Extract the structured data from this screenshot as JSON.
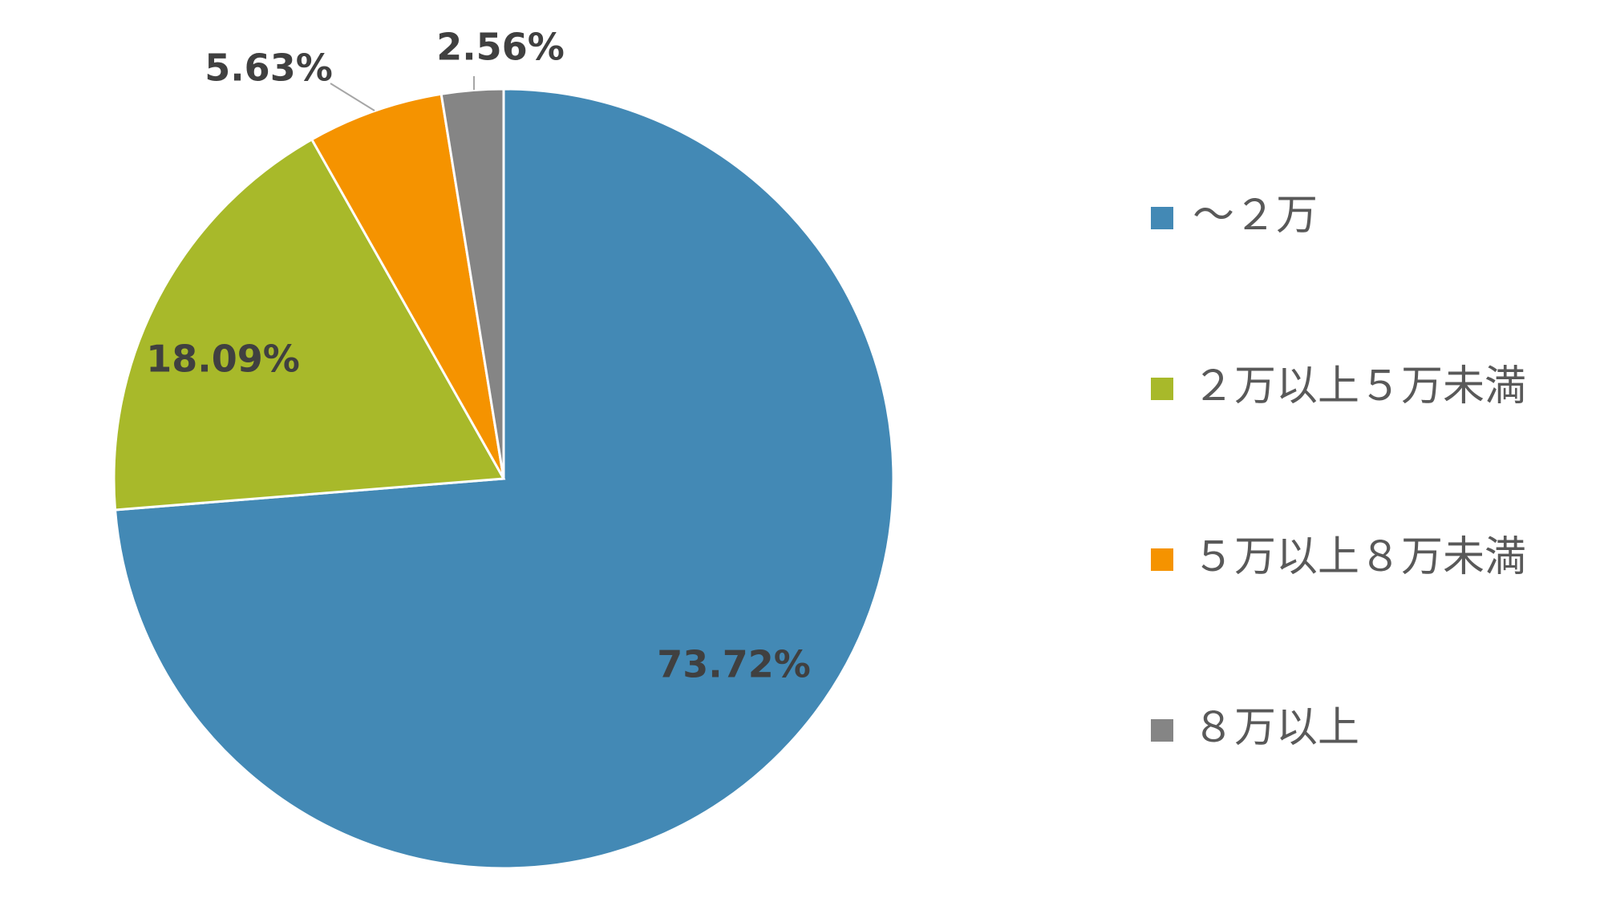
{
  "chart_data": {
    "type": "pie",
    "title": "",
    "categories": [
      "～２万",
      "２万以上５万未満",
      "５万以上８万未満",
      "８万以上"
    ],
    "values": [
      73.72,
      18.09,
      5.63,
      2.56
    ],
    "labels": [
      "73.72%",
      "18.09%",
      "5.63%",
      "2.56%"
    ],
    "colors": [
      "#4389B5",
      "#A8B92A",
      "#F59300",
      "#858585"
    ],
    "start_angle_deg": 0,
    "direction": "clockwise",
    "legend_position": "right"
  }
}
